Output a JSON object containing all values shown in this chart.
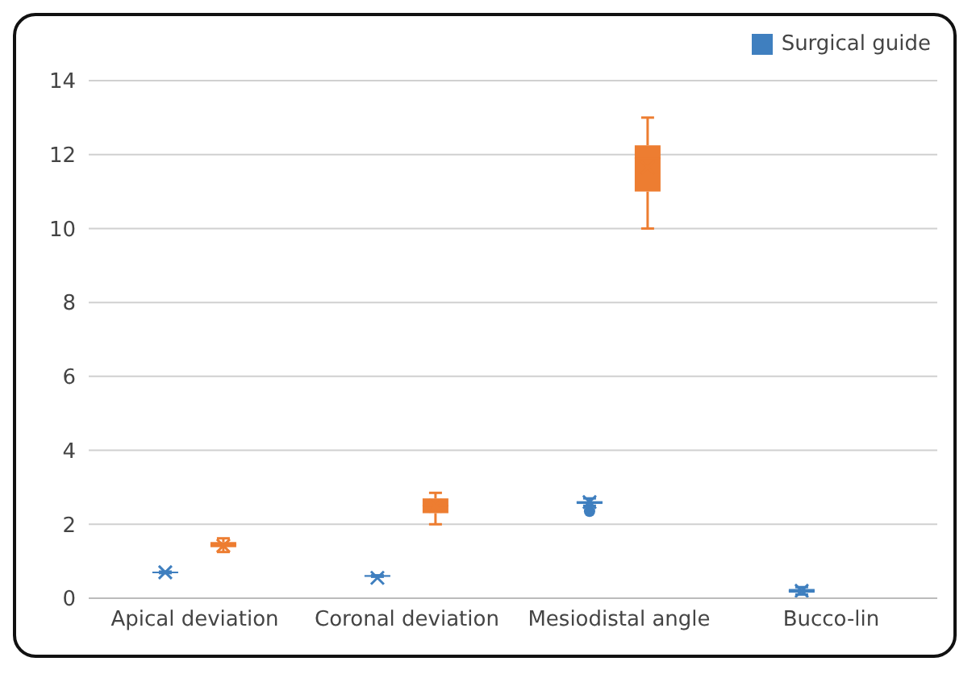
{
  "chart_data": {
    "type": "box",
    "categories": [
      "Apical deviation",
      "Coronal deviation",
      "Mesiodistal angle",
      "Bucco-lin"
    ],
    "series": [
      {
        "name": "Surgical guide",
        "color": "#3f7fbf",
        "boxes": [
          {
            "low": 0.68,
            "q1": 0.69,
            "median": 0.7,
            "q3": 0.71,
            "high": 0.72,
            "mean": 0.7
          },
          {
            "low": 0.58,
            "q1": 0.6,
            "median": 0.6,
            "q3": 0.62,
            "high": 0.62,
            "mean": 0.55
          },
          {
            "low": 2.5,
            "q1": 2.55,
            "median": 2.6,
            "q3": 2.62,
            "high": 2.7,
            "mean": 2.6,
            "outliers": [
              2.35
            ]
          },
          {
            "low": 0.1,
            "q1": 0.15,
            "median": 0.2,
            "q3": 0.25,
            "high": 0.3,
            "mean": 0.2
          }
        ]
      },
      {
        "color": "#ed7d31",
        "boxes": [
          {
            "low": 1.25,
            "q1": 1.38,
            "median": 1.45,
            "q3": 1.52,
            "high": 1.62,
            "mean": 1.42
          },
          {
            "low": 2.0,
            "q1": 2.3,
            "median": 2.5,
            "q3": 2.7,
            "high": 2.85,
            "mean": 2.5
          },
          {
            "low": 10,
            "q1": 11,
            "median": 11.9,
            "q3": 12.25,
            "high": 13,
            "mean": 11.65
          },
          null
        ]
      }
    ],
    "ylim": [
      0,
      14
    ],
    "yticks": [
      0,
      2,
      4,
      6,
      8,
      10,
      12,
      14
    ],
    "grid": "y",
    "legend": "top right"
  }
}
